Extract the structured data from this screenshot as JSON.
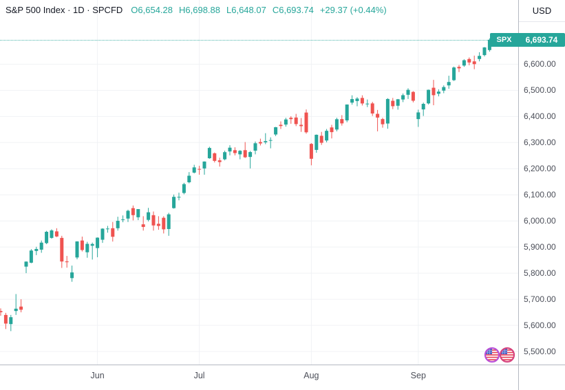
{
  "header": {
    "title": "S&P 500 Index · 1D · SPCFD",
    "symbol_name": "S&P 500 Index",
    "interval": "1D",
    "exchange": "SPCFD",
    "tokens": [
      "O6,654.28",
      "H6,698.88",
      "L6,648.07",
      "C6,693.74",
      "+29.37 (+0.44%)"
    ]
  },
  "price_axis": {
    "currency": "USD",
    "current_price_tag": {
      "symbol": "SPX",
      "price": "6,693.74"
    }
  },
  "colors": {
    "up": "#26a69a",
    "down": "#ef5350",
    "badge_bg": "#26a69a",
    "text_dark": "#131722",
    "axis_text": "#4c4f59",
    "grid": "#f0f2f5"
  },
  "chart_data": {
    "type": "candlestick",
    "title": "S&P 500 Index",
    "interval": "1D",
    "source": "SPCFD",
    "currency": "USD",
    "last_close": 6693.74,
    "ylim": [
      5450,
      6846
    ],
    "y_ticks": [
      5500,
      5600,
      5700,
      5800,
      5900,
      6000,
      6100,
      6200,
      6300,
      6400,
      6500,
      6600
    ],
    "x_ticks": [
      {
        "label": "Jun",
        "candle_index": 19
      },
      {
        "label": "Jul",
        "candle_index": 39
      },
      {
        "label": "Aug",
        "candle_index": 61
      },
      {
        "label": "Sep",
        "candle_index": 82
      }
    ],
    "x0": 1,
    "dx": 7.4,
    "columns": [
      "date",
      "open",
      "high",
      "low",
      "close"
    ],
    "candles": [
      [
        "2025-05-05",
        5655,
        5665,
        5637,
        5650.4
      ],
      [
        "2025-05-06",
        5640,
        5648,
        5586,
        5606.9
      ],
      [
        "2025-05-07",
        5605,
        5640,
        5578,
        5631.3
      ],
      [
        "2025-05-08",
        5655,
        5720,
        5640,
        5663.9
      ],
      [
        "2025-05-09",
        5672,
        5700,
        5650,
        5659.9
      ],
      [
        "2025-05-12",
        5825,
        5845,
        5800,
        5844.2
      ],
      [
        "2025-05-13",
        5840,
        5892,
        5838,
        5886.6
      ],
      [
        "2025-05-14",
        5885,
        5901,
        5869,
        5892.6
      ],
      [
        "2025-05-15",
        5890,
        5925,
        5878,
        5916.9
      ],
      [
        "2025-05-16",
        5915,
        5962,
        5911,
        5958.4
      ],
      [
        "2025-05-19",
        5935,
        5968,
        5932,
        5963.6
      ],
      [
        "2025-05-20",
        5960,
        5972,
        5938,
        5940.5
      ],
      [
        "2025-05-21",
        5935,
        5943,
        5820,
        5844.6
      ],
      [
        "2025-05-22",
        5845,
        5866,
        5821,
        5842.0
      ],
      [
        "2025-05-23",
        5781,
        5829,
        5767,
        5802.8
      ],
      [
        "2025-05-27",
        5860,
        5922,
        5853,
        5921.5
      ],
      [
        "2025-05-28",
        5925,
        5940,
        5883,
        5888.6
      ],
      [
        "2025-05-29",
        5880,
        5920,
        5859,
        5912.2
      ],
      [
        "2025-05-30",
        5905,
        5917,
        5852,
        5911.7
      ],
      [
        "2025-06-02",
        5896,
        5937,
        5861,
        5935.9
      ],
      [
        "2025-06-03",
        5928,
        5972,
        5916,
        5970.4
      ],
      [
        "2025-06-04",
        5970,
        5981,
        5955,
        5970.8
      ],
      [
        "2025-06-05",
        5972,
        5996,
        5921,
        5939.3
      ],
      [
        "2025-06-06",
        5972,
        6016,
        5963,
        6000.4
      ],
      [
        "2025-06-09",
        6004,
        6021,
        5995,
        6005.9
      ],
      [
        "2025-06-10",
        6009,
        6043,
        5996,
        6038.8
      ],
      [
        "2025-06-11",
        6049,
        6059,
        6002,
        6022.2
      ],
      [
        "2025-06-12",
        6014,
        6045,
        6003,
        6045.3
      ],
      [
        "2025-06-13",
        5987,
        6018,
        5963,
        5977.0
      ],
      [
        "2025-06-16",
        6004,
        6050,
        5998,
        6033.1
      ],
      [
        "2025-06-17",
        6022,
        6036,
        5963,
        5982.7
      ],
      [
        "2025-06-18",
        5989,
        6018,
        5966,
        5980.9
      ],
      [
        "2025-06-20",
        6012,
        6018,
        5952,
        5967.8
      ],
      [
        "2025-06-23",
        5969,
        6031,
        5943,
        6025.2
      ],
      [
        "2025-06-24",
        6049,
        6101,
        6047,
        6092.2
      ],
      [
        "2025-06-25",
        6091,
        6108,
        6079,
        6092.2
      ],
      [
        "2025-06-26",
        6107,
        6146,
        6102,
        6141.0
      ],
      [
        "2025-06-27",
        6148,
        6187,
        6144,
        6173.1
      ],
      [
        "2025-06-30",
        6185,
        6215,
        6182,
        6205.0
      ],
      [
        "2025-07-01",
        6199,
        6211,
        6177,
        6198.0
      ],
      [
        "2025-07-02",
        6201,
        6228,
        6177,
        6227.4
      ],
      [
        "2025-07-03",
        6240,
        6284,
        6238,
        6279.4
      ],
      [
        "2025-07-07",
        6259,
        6262,
        6224,
        6230.0
      ],
      [
        "2025-07-08",
        6232,
        6242,
        6208,
        6225.5
      ],
      [
        "2025-07-09",
        6236,
        6269,
        6232,
        6263.3
      ],
      [
        "2025-07-10",
        6266,
        6290,
        6251,
        6280.5
      ],
      [
        "2025-07-11",
        6271,
        6282,
        6251,
        6259.8
      ],
      [
        "2025-07-14",
        6255,
        6271,
        6236,
        6268.6
      ],
      [
        "2025-07-15",
        6271,
        6302,
        6241,
        6243.8
      ],
      [
        "2025-07-16",
        6245,
        6268,
        6201,
        6263.7
      ],
      [
        "2025-07-17",
        6269,
        6304,
        6255,
        6297.4
      ],
      [
        "2025-07-18",
        6302,
        6315,
        6289,
        6296.8
      ],
      [
        "2025-07-21",
        6301,
        6336,
        6294,
        6305.6
      ],
      [
        "2025-07-22",
        6307,
        6320,
        6278,
        6309.6
      ],
      [
        "2025-07-23",
        6331,
        6360,
        6325,
        6358.9
      ],
      [
        "2025-07-24",
        6368,
        6381,
        6352,
        6363.4
      ],
      [
        "2025-07-25",
        6369,
        6395,
        6361,
        6388.6
      ],
      [
        "2025-07-28",
        6395,
        6401,
        6372,
        6389.8
      ],
      [
        "2025-07-29",
        6396,
        6410,
        6363,
        6370.9
      ],
      [
        "2025-07-30",
        6368,
        6394,
        6341,
        6362.9
      ],
      [
        "2025-07-31",
        6415,
        6427,
        6334,
        6339.4
      ],
      [
        "2025-08-01",
        6295,
        6298,
        6213,
        6238.0
      ],
      [
        "2025-08-04",
        6272,
        6331,
        6261,
        6329.9
      ],
      [
        "2025-08-05",
        6326,
        6341,
        6291,
        6299.2
      ],
      [
        "2025-08-06",
        6308,
        6352,
        6301,
        6345.1
      ],
      [
        "2025-08-07",
        6358,
        6368,
        6316,
        6340.0
      ],
      [
        "2025-08-08",
        6350,
        6395,
        6343,
        6389.5
      ],
      [
        "2025-08-11",
        6390,
        6405,
        6365,
        6373.5
      ],
      [
        "2025-08-12",
        6385,
        6446,
        6378,
        6445.8
      ],
      [
        "2025-08-13",
        6453,
        6481,
        6445,
        6466.6
      ],
      [
        "2025-08-14",
        6459,
        6474,
        6439,
        6468.5
      ],
      [
        "2025-08-15",
        6471,
        6481,
        6442,
        6449.8
      ],
      [
        "2025-08-18",
        6449,
        6465,
        6436,
        6449.2
      ],
      [
        "2025-08-19",
        6450,
        6456,
        6402,
        6411.4
      ],
      [
        "2025-08-20",
        6410,
        6425,
        6343,
        6395.8
      ],
      [
        "2025-08-21",
        6390,
        6395,
        6357,
        6370.2
      ],
      [
        "2025-08-22",
        6373,
        6470,
        6353,
        6466.9
      ],
      [
        "2025-08-25",
        6460,
        6471,
        6428,
        6439.3
      ],
      [
        "2025-08-26",
        6441,
        6467,
        6426,
        6465.9
      ],
      [
        "2025-08-27",
        6465,
        6488,
        6455,
        6481.4
      ],
      [
        "2025-08-28",
        6483,
        6508,
        6467,
        6501.9
      ],
      [
        "2025-08-29",
        6494,
        6497,
        6454,
        6460.3
      ],
      [
        "2025-09-02",
        6390,
        6426,
        6360,
        6415.5
      ],
      [
        "2025-09-03",
        6427,
        6453,
        6402,
        6448.3
      ],
      [
        "2025-09-04",
        6450,
        6503,
        6446,
        6502.1
      ],
      [
        "2025-09-05",
        6510,
        6540,
        6443,
        6481.5
      ],
      [
        "2025-09-08",
        6487,
        6504,
        6477,
        6495.2
      ],
      [
        "2025-09-09",
        6499,
        6519,
        6489,
        6512.6
      ],
      [
        "2025-09-10",
        6519,
        6556,
        6506,
        6532.0
      ],
      [
        "2025-09-11",
        6539,
        6591,
        6536,
        6587.5
      ],
      [
        "2025-09-12",
        6590,
        6597,
        6570,
        6584.3
      ],
      [
        "2025-09-15",
        6595,
        6619,
        6590,
        6615.3
      ],
      [
        "2025-09-16",
        6620,
        6626,
        6596,
        6606.8
      ],
      [
        "2025-09-17",
        6611,
        6633,
        6581,
        6600.4
      ],
      [
        "2025-09-18",
        6620,
        6646,
        6611,
        6632.0
      ],
      [
        "2025-09-19",
        6635,
        6666,
        6630,
        6664.4
      ],
      [
        "2025-09-22",
        6654.28,
        6698.88,
        6648.07,
        6693.74
      ]
    ]
  }
}
